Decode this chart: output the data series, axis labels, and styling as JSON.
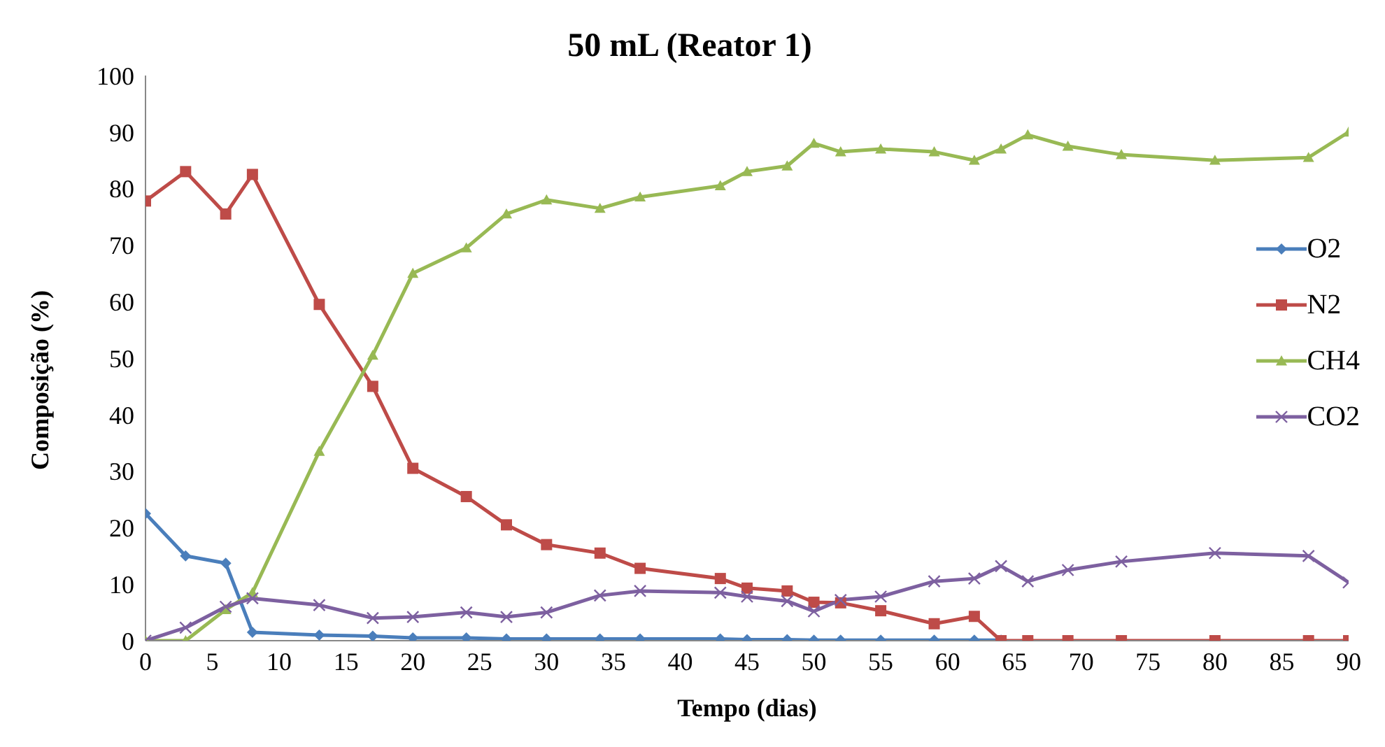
{
  "chart_data": {
    "type": "line",
    "title": "50 mL (Reator 1)",
    "xlabel": "Tempo (dias)",
    "ylabel": "Composição (%)",
    "x": [
      0,
      3,
      6,
      8,
      13,
      17,
      20,
      24,
      27,
      30,
      34,
      37,
      43,
      45,
      48,
      50,
      52,
      55,
      59,
      62,
      64,
      66,
      69,
      73,
      80,
      87,
      90
    ],
    "xlim": [
      0,
      90
    ],
    "xticks": [
      0,
      5,
      10,
      15,
      20,
      25,
      30,
      35,
      40,
      45,
      50,
      55,
      60,
      65,
      70,
      75,
      80,
      85,
      90
    ],
    "ylim": [
      0,
      100
    ],
    "yticks": [
      0,
      10,
      20,
      30,
      40,
      50,
      60,
      70,
      80,
      90,
      100
    ],
    "grid": false,
    "legend": "right",
    "series": [
      {
        "name": "O2",
        "color": "#4a7ebb",
        "marker": "diamond",
        "values": [
          22.5,
          15,
          13.7,
          1.5,
          1.0,
          0.8,
          0.5,
          0.5,
          0.3,
          0.3,
          0.3,
          0.3,
          0.3,
          0.2,
          0.2,
          0.1,
          0.1,
          0.1,
          0.1,
          0.1,
          0.1,
          null,
          null,
          null,
          null,
          null,
          null
        ]
      },
      {
        "name": "N2",
        "color": "#be4b48",
        "marker": "square",
        "values": [
          77.8,
          83,
          75.5,
          82.5,
          59.5,
          45,
          30.5,
          25.5,
          20.5,
          17,
          15.5,
          12.8,
          11,
          9.3,
          8.8,
          6.8,
          6.7,
          5.3,
          3,
          4.3,
          0,
          0,
          0,
          0,
          0,
          0,
          0
        ]
      },
      {
        "name": "CH4",
        "color": "#98b954",
        "marker": "triangle",
        "values": [
          0,
          0,
          5.5,
          8.5,
          33.5,
          50.5,
          65,
          69.5,
          75.5,
          78,
          76.5,
          78.5,
          80.5,
          83,
          84,
          88,
          86.5,
          87,
          86.5,
          85,
          87,
          89.5,
          87.5,
          86,
          85,
          85.5,
          90
        ]
      },
      {
        "name": "CO2",
        "color": "#7d60a0",
        "marker": "cross",
        "values": [
          0,
          2.3,
          6,
          7.5,
          6.3,
          4,
          4.2,
          5,
          4.2,
          5,
          8,
          8.8,
          8.5,
          7.8,
          7,
          5.2,
          7.2,
          7.8,
          10.5,
          11,
          13.2,
          10.5,
          12.5,
          14,
          15.5,
          15,
          10.3
        ]
      }
    ]
  }
}
